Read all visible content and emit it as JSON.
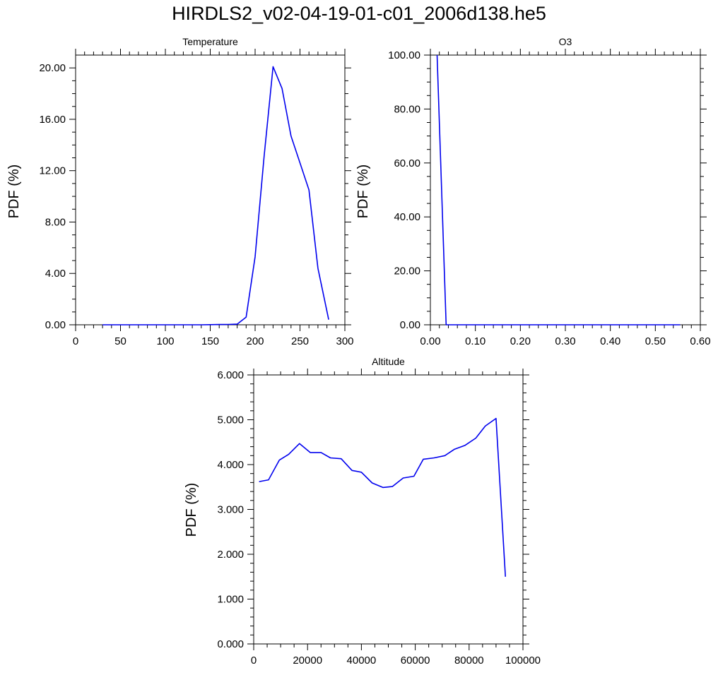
{
  "title": "HIRDLS2_v02-04-19-01-c01_2006d138.he5",
  "chart_data": [
    {
      "type": "line",
      "title": "Temperature",
      "xlabel": "",
      "ylabel": "PDF (%)",
      "xlim": [
        0,
        300
      ],
      "ylim": [
        0,
        21
      ],
      "xticks": [
        0,
        50,
        100,
        150,
        200,
        250,
        300
      ],
      "xtick_labels": [
        "0",
        "50",
        "100",
        "150",
        "200",
        "250",
        "300"
      ],
      "yticks": [
        0,
        4,
        8,
        12,
        16,
        20
      ],
      "ytick_labels": [
        "0.00",
        "4.00",
        "8.00",
        "12.00",
        "16.00",
        "20.00"
      ],
      "series": [
        {
          "color": "#0000ee",
          "x": [
            30,
            40,
            50,
            60,
            70,
            80,
            90,
            100,
            110,
            120,
            130,
            140,
            150,
            160,
            170,
            180,
            190,
            200,
            210,
            220,
            230,
            240,
            250,
            260,
            270,
            282
          ],
          "y": [
            0,
            0,
            0,
            0,
            0,
            0,
            0,
            0,
            0,
            0,
            0,
            0,
            0.01,
            0.02,
            0.03,
            0.05,
            0.6,
            5.3,
            13.1,
            20.1,
            18.4,
            14.7,
            12.6,
            10.5,
            4.4,
            0.4
          ]
        }
      ]
    },
    {
      "type": "line",
      "title": "O3",
      "xlabel": "",
      "ylabel": "PDF (%)",
      "xlim": [
        0,
        0.6
      ],
      "ylim": [
        0,
        100
      ],
      "xticks": [
        0,
        0.1,
        0.2,
        0.3,
        0.4,
        0.5,
        0.6
      ],
      "xtick_labels": [
        "0.00",
        "0.10",
        "0.20",
        "0.30",
        "0.40",
        "0.50",
        "0.60"
      ],
      "yticks": [
        0,
        20,
        40,
        60,
        80,
        100
      ],
      "ytick_labels": [
        "0.00",
        "20.00",
        "40.00",
        "60.00",
        "80.00",
        "100.00"
      ],
      "series": [
        {
          "color": "#0000ee",
          "x": [
            0.015,
            0.035,
            0.055,
            0.1,
            0.2,
            0.3,
            0.4,
            0.5,
            0.555
          ],
          "y": [
            100,
            0,
            0,
            0,
            0,
            0,
            0,
            0,
            0
          ]
        }
      ]
    },
    {
      "type": "line",
      "title": "Altitude",
      "xlabel": "",
      "ylabel": "PDF (%)",
      "xlim": [
        0,
        100000
      ],
      "ylim": [
        0,
        6
      ],
      "xticks": [
        0,
        20000,
        40000,
        60000,
        80000,
        100000
      ],
      "xtick_labels": [
        "0",
        "20000",
        "40000",
        "60000",
        "80000",
        "100000"
      ],
      "yticks": [
        0,
        1,
        2,
        3,
        4,
        5,
        6
      ],
      "ytick_labels": [
        "0.000",
        "1.000",
        "2.000",
        "3.000",
        "4.000",
        "5.000",
        "6.000"
      ],
      "series": [
        {
          "color": "#0000ee",
          "x": [
            2000,
            5500,
            9500,
            13000,
            17000,
            21000,
            25000,
            28500,
            32500,
            36500,
            40000,
            44000,
            48000,
            51500,
            55500,
            59500,
            63000,
            67000,
            71000,
            74500,
            78500,
            82500,
            86000,
            90000,
            93500
          ],
          "y": [
            3.62,
            3.66,
            4.1,
            4.23,
            4.47,
            4.27,
            4.27,
            4.15,
            4.13,
            3.87,
            3.83,
            3.59,
            3.49,
            3.51,
            3.7,
            3.74,
            4.12,
            4.15,
            4.2,
            4.34,
            4.43,
            4.59,
            4.86,
            5.03,
            1.5
          ]
        }
      ]
    }
  ]
}
